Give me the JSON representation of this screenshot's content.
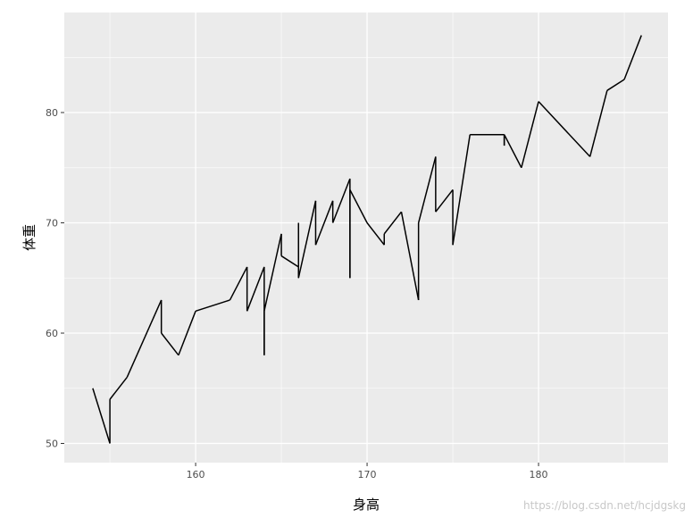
{
  "chart_data": {
    "type": "line",
    "title": "",
    "xlabel": "身高",
    "ylabel": "体重",
    "xlim": [
      152.34,
      187.55
    ],
    "ylim": [
      48.26,
      89.07
    ],
    "x_ticks": [
      160,
      170,
      180
    ],
    "y_ticks": [
      50,
      60,
      70,
      80
    ],
    "x_tick_labels": [
      "160",
      "170",
      "180"
    ],
    "y_tick_labels": [
      "50",
      "60",
      "70",
      "80"
    ],
    "grid": true,
    "background": "#EBEBEB",
    "line_color": "#000000",
    "points": [
      [
        154,
        55
      ],
      [
        155,
        50
      ],
      [
        155,
        54
      ],
      [
        156,
        56
      ],
      [
        158,
        63
      ],
      [
        158,
        60
      ],
      [
        159,
        58
      ],
      [
        160,
        62
      ],
      [
        162,
        63
      ],
      [
        163,
        66
      ],
      [
        163,
        62
      ],
      [
        164,
        66
      ],
      [
        164,
        58
      ],
      [
        164,
        62
      ],
      [
        165,
        69
      ],
      [
        165,
        67
      ],
      [
        166,
        66
      ],
      [
        166,
        70
      ],
      [
        166,
        65
      ],
      [
        167,
        72
      ],
      [
        167,
        68
      ],
      [
        168,
        72
      ],
      [
        168,
        70
      ],
      [
        169,
        74
      ],
      [
        169,
        65
      ],
      [
        169,
        73
      ],
      [
        170,
        70
      ],
      [
        171,
        68
      ],
      [
        171,
        69
      ],
      [
        172,
        71
      ],
      [
        173,
        63
      ],
      [
        173,
        70
      ],
      [
        174,
        76
      ],
      [
        174,
        71
      ],
      [
        175,
        73
      ],
      [
        175,
        68
      ],
      [
        176,
        78
      ],
      [
        178,
        78
      ],
      [
        178,
        77
      ],
      [
        178,
        78
      ],
      [
        179,
        75
      ],
      [
        180,
        81
      ],
      [
        183,
        76
      ],
      [
        184,
        82
      ],
      [
        185,
        83
      ],
      [
        186,
        87
      ]
    ]
  },
  "watermark": "https://blog.csdn.net/hcjdgskg"
}
